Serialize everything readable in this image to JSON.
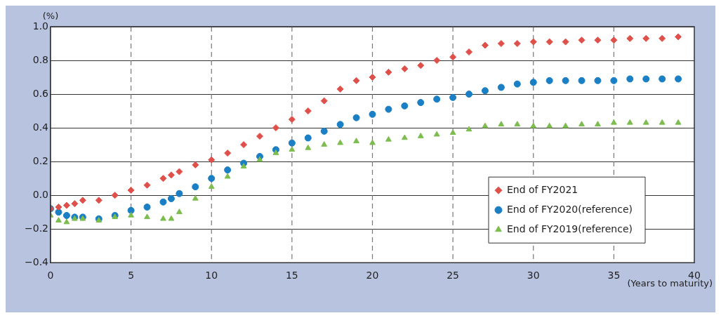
{
  "chart_data": {
    "type": "scatter",
    "ylabel": "(%)",
    "xlabel": "(Years to maturity)",
    "x": [
      0,
      0.5,
      1,
      1.5,
      2,
      3,
      4,
      5,
      6,
      7,
      7.5,
      8,
      9,
      10,
      11,
      12,
      13,
      14,
      15,
      16,
      17,
      18,
      19,
      20,
      21,
      22,
      23,
      24,
      25,
      26,
      27,
      28,
      29,
      30,
      31,
      32,
      33,
      34,
      35,
      36,
      37,
      38,
      39
    ],
    "series": [
      {
        "name": "End of FY2021",
        "color": "#e0504a",
        "marker": "diamond",
        "values": [
          -0.08,
          -0.07,
          -0.06,
          -0.05,
          -0.03,
          -0.03,
          0.0,
          0.03,
          0.06,
          0.1,
          0.12,
          0.14,
          0.18,
          0.21,
          0.25,
          0.3,
          0.35,
          0.4,
          0.45,
          0.5,
          0.56,
          0.63,
          0.68,
          0.7,
          0.73,
          0.75,
          0.77,
          0.8,
          0.82,
          0.85,
          0.89,
          0.9,
          0.9,
          0.91,
          0.91,
          0.91,
          0.92,
          0.92,
          0.92,
          0.93,
          0.93,
          0.93,
          0.94
        ]
      },
      {
        "name": "End of FY2020(reference)",
        "color": "#1a7fc4",
        "marker": "circle",
        "values": [
          -0.08,
          -0.1,
          -0.12,
          -0.13,
          -0.13,
          -0.14,
          -0.12,
          -0.09,
          -0.07,
          -0.04,
          -0.02,
          0.01,
          0.05,
          0.1,
          0.15,
          0.19,
          0.23,
          0.27,
          0.31,
          0.34,
          0.38,
          0.42,
          0.46,
          0.48,
          0.51,
          0.53,
          0.55,
          0.57,
          0.58,
          0.6,
          0.62,
          0.64,
          0.66,
          0.67,
          0.68,
          0.68,
          0.68,
          0.68,
          0.68,
          0.69,
          0.69,
          0.69,
          0.69
        ]
      },
      {
        "name": "End of FY2019(reference)",
        "color": "#7dbd4f",
        "marker": "triangle",
        "values": [
          -0.12,
          -0.15,
          -0.16,
          -0.14,
          -0.14,
          -0.15,
          -0.13,
          -0.12,
          -0.13,
          -0.14,
          -0.14,
          -0.1,
          -0.02,
          0.05,
          0.11,
          0.17,
          0.21,
          0.25,
          0.27,
          0.28,
          0.3,
          0.31,
          0.32,
          0.31,
          0.33,
          0.34,
          0.35,
          0.36,
          0.37,
          0.39,
          0.41,
          0.42,
          0.42,
          0.41,
          0.41,
          0.41,
          0.42,
          0.42,
          0.43,
          0.43,
          0.43,
          0.43,
          0.43
        ]
      }
    ],
    "xlim": [
      0,
      40
    ],
    "xticks": [
      0,
      5,
      10,
      15,
      20,
      25,
      30,
      35,
      40
    ],
    "ylim": [
      -0.4,
      1.0
    ],
    "yticks": [
      {
        "value": -0.4,
        "label": "−0.4"
      },
      {
        "value": -0.2,
        "label": "−0.2"
      },
      {
        "value": 0,
        "label": "0.0"
      },
      {
        "value": 0.2,
        "label": "0.2"
      },
      {
        "value": 0.4,
        "label": "0.4"
      },
      {
        "value": 0.6,
        "label": "0.6"
      },
      {
        "value": 0.8,
        "label": "0.8"
      },
      {
        "value": 1.0,
        "label": "1.0"
      }
    ],
    "grid": true,
    "legend": "bottom right"
  }
}
